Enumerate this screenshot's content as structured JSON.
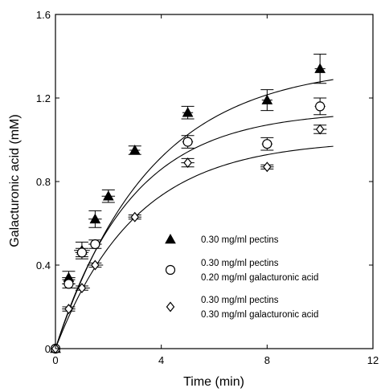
{
  "chart_data": {
    "type": "scatter",
    "xlabel": "Time (min)",
    "ylabel": "Galacturonic acid (mM)",
    "xlim": [
      0,
      12
    ],
    "ylim": [
      0,
      1.6
    ],
    "xticks": [
      0,
      4,
      8,
      12
    ],
    "xtick_labels": [
      "0",
      "4",
      "8",
      "12"
    ],
    "yticks": [
      0,
      0.4,
      0.8,
      1.2,
      1.6
    ],
    "ytick_labels": [
      "0",
      "0.4",
      "0.8",
      "1.2",
      "1.6"
    ],
    "grid": false,
    "legend_position": "center-right",
    "series": [
      {
        "marker": "filled-triangle",
        "legend": [
          "0.30 mg/ml pectins"
        ],
        "x": [
          0,
          0.5,
          1.0,
          1.5,
          2.0,
          3.0,
          5.0,
          8.0,
          10.0
        ],
        "y": [
          0,
          0.34,
          0.47,
          0.62,
          0.73,
          0.95,
          1.13,
          1.19,
          1.34
        ],
        "yerr": [
          0,
          0.03,
          0.04,
          0.04,
          0.03,
          0.02,
          0.03,
          0.05,
          0.07
        ],
        "xerr": [
          0,
          0.25,
          0.3,
          0.25,
          0.25,
          0.2,
          0.2,
          0.2,
          0.2
        ],
        "fit": {
          "ymax": 1.36,
          "k": 0.28
        }
      },
      {
        "marker": "open-circle",
        "legend": [
          "0.30 mg/ml pectins",
          "0.20 mg/ml galacturonic acid"
        ],
        "x": [
          0,
          0.5,
          1.0,
          1.5,
          5.0,
          8.0,
          10.0
        ],
        "y": [
          0,
          0.31,
          0.46,
          0.5,
          0.99,
          0.98,
          1.16
        ],
        "yerr": [
          0,
          0.02,
          0.02,
          0.02,
          0.03,
          0.03,
          0.04
        ],
        "xerr": [
          0,
          0.25,
          0.25,
          0.25,
          0.2,
          0.2,
          0.2
        ],
        "fit": {
          "ymax": 1.14,
          "k": 0.35
        }
      },
      {
        "marker": "open-diamond",
        "legend": [
          "0.30 mg/ml pectins",
          "0.30 mg/ml galacturonic acid"
        ],
        "x": [
          0,
          0.5,
          1.0,
          1.5,
          3.0,
          5.0,
          8.0,
          10.0
        ],
        "y": [
          0,
          0.19,
          0.29,
          0.4,
          0.63,
          0.89,
          0.87,
          1.05
        ],
        "yerr": [
          0,
          0.01,
          0.01,
          0.01,
          0.01,
          0.02,
          0.01,
          0.02
        ],
        "xerr": [
          0,
          0.25,
          0.3,
          0.3,
          0.25,
          0.25,
          0.25,
          0.25
        ],
        "fit": {
          "ymax": 1.0,
          "k": 0.33
        }
      }
    ]
  }
}
